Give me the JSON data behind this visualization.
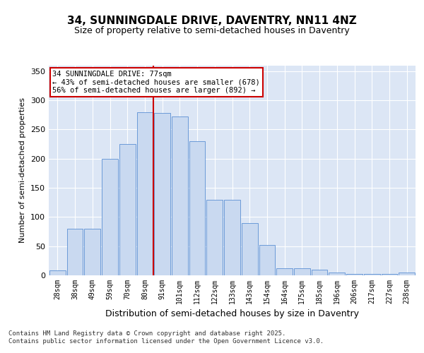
{
  "title": "34, SUNNINGDALE DRIVE, DAVENTRY, NN11 4NZ",
  "subtitle": "Size of property relative to semi-detached houses in Daventry",
  "xlabel": "Distribution of semi-detached houses by size in Daventry",
  "ylabel": "Number of semi-detached properties",
  "categories": [
    "28sqm",
    "38sqm",
    "49sqm",
    "59sqm",
    "70sqm",
    "80sqm",
    "91sqm",
    "101sqm",
    "112sqm",
    "122sqm",
    "133sqm",
    "143sqm",
    "154sqm",
    "164sqm",
    "175sqm",
    "185sqm",
    "196sqm",
    "206sqm",
    "217sqm",
    "227sqm",
    "238sqm"
  ],
  "values": [
    8,
    80,
    80,
    200,
    225,
    280,
    278,
    272,
    230,
    130,
    130,
    90,
    52,
    12,
    12,
    10,
    5,
    2,
    2,
    2,
    5
  ],
  "bar_color": "#c9d9f0",
  "bar_edge_color": "#5b8fd4",
  "vline_x_index": 5,
  "vline_color": "#cc0000",
  "annotation_text": "34 SUNNINGDALE DRIVE: 77sqm\n← 43% of semi-detached houses are smaller (678)\n56% of semi-detached houses are larger (892) →",
  "annotation_box_color": "#ffffff",
  "annotation_box_edge": "#cc0000",
  "ylim": [
    0,
    360
  ],
  "yticks": [
    0,
    50,
    100,
    150,
    200,
    250,
    300,
    350
  ],
  "footer_text": "Contains HM Land Registry data © Crown copyright and database right 2025.\nContains public sector information licensed under the Open Government Licence v3.0.",
  "plot_bg_color": "#dce6f5",
  "grid_color": "#ffffff",
  "title_fontsize": 11,
  "subtitle_fontsize": 9,
  "tick_fontsize": 7,
  "ylabel_fontsize": 8,
  "xlabel_fontsize": 9,
  "footer_fontsize": 6.5,
  "annotation_fontsize": 7.5
}
